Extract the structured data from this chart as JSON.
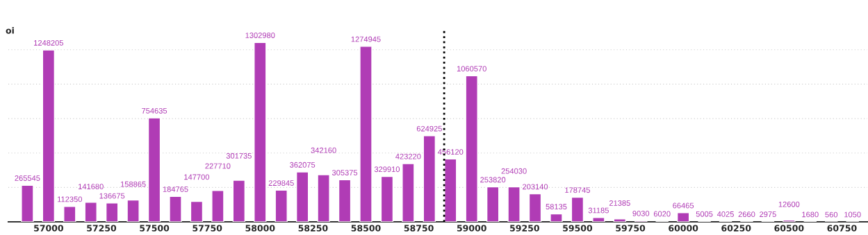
{
  "chart_data": {
    "type": "bar",
    "ylabel": "oi",
    "x": [
      56900,
      57000,
      57100,
      57200,
      57300,
      57400,
      57500,
      57600,
      57700,
      57800,
      57900,
      58000,
      58100,
      58200,
      58300,
      58400,
      58500,
      58600,
      58700,
      58800,
      58900,
      59000,
      59100,
      59200,
      59300,
      59400,
      59500,
      59600,
      59700,
      59800,
      59900,
      60000,
      60100,
      60200,
      60300,
      60400,
      60500,
      60600,
      60700,
      60800
    ],
    "series": [
      {
        "color": "#b03cb5",
        "values": [
          265545,
          1248205,
          112350,
          141680,
          136675,
          158865,
          754635,
          184765,
          147700,
          227710,
          301735,
          1302980,
          229845,
          362075,
          342160,
          305375,
          1274945,
          329910,
          423220,
          624925,
          456120,
          1060570,
          253820,
          254030,
          203140,
          58135,
          178745,
          31185,
          21385,
          9030,
          6020,
          66465,
          5005,
          4025,
          2660,
          2975,
          12600,
          1680,
          560,
          1050
        ]
      }
    ],
    "data_labels": true,
    "xlim": [
      56810,
      60870
    ],
    "xticks": [
      57000,
      57250,
      57500,
      57750,
      58000,
      58250,
      58500,
      58750,
      59000,
      59250,
      59500,
      59750,
      60000,
      60250,
      60500,
      60750
    ],
    "ylim": [
      0,
      1400000
    ],
    "yticks": [
      {
        "value": 0,
        "label": null
      },
      {
        "value": 250000,
        "label": null
      },
      {
        "value": 500000,
        "label": null
      },
      {
        "value": 750000,
        "label": null
      },
      {
        "value": 1000000,
        "label": null
      },
      {
        "value": 1250000,
        "label": null
      }
    ],
    "tick_labels": "x",
    "grid": "y",
    "ref_lines": [
      {
        "axis": "x",
        "value": 58870,
        "color": "#000000",
        "line_style": "dotted"
      }
    ]
  }
}
